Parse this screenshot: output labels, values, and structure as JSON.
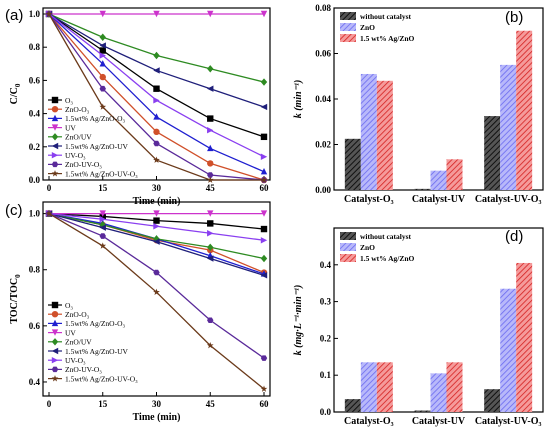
{
  "chart_data": [
    {
      "panel_label": "(a)",
      "type": "line",
      "xlabel": "Time (min)",
      "ylabel_main": "C/C",
      "ylabel_sub": "0",
      "xlim": [
        0,
        60
      ],
      "ylim": [
        0,
        1.0
      ],
      "xticks": [
        0,
        15,
        30,
        45,
        60
      ],
      "yticks": [
        0.0,
        0.2,
        0.4,
        0.6,
        0.8,
        1.0
      ],
      "x": [
        0,
        15,
        30,
        45,
        60
      ],
      "legend_position": "bottom-left",
      "series": [
        {
          "name": "O₃",
          "color": "#000000",
          "marker": "square",
          "values": [
            1.0,
            0.78,
            0.55,
            0.37,
            0.26
          ]
        },
        {
          "name": "ZnO-O₃",
          "color": "#d0502a",
          "marker": "circle",
          "values": [
            1.0,
            0.62,
            0.29,
            0.1,
            0.0
          ]
        },
        {
          "name": "1.5wt% Ag/ZnO-O₃",
          "color": "#1f1fd0",
          "marker": "triangle-up",
          "values": [
            1.0,
            0.7,
            0.38,
            0.19,
            0.05
          ]
        },
        {
          "name": "UV",
          "color": "#cc33cc",
          "marker": "triangle-down",
          "values": [
            1.0,
            1.0,
            1.0,
            1.0,
            1.0
          ]
        },
        {
          "name": "ZnO/UV",
          "color": "#2e8b22",
          "marker": "diamond",
          "values": [
            1.0,
            0.86,
            0.75,
            0.67,
            0.59
          ]
        },
        {
          "name": "1.5wt% Ag/ZnO-UV",
          "color": "#1f1f7a",
          "marker": "triangle-left",
          "values": [
            1.0,
            0.81,
            0.66,
            0.55,
            0.44
          ]
        },
        {
          "name": "UV-O₃",
          "color": "#8a3ff0",
          "marker": "triangle-right",
          "values": [
            1.0,
            0.75,
            0.48,
            0.3,
            0.14
          ]
        },
        {
          "name": "ZnO-UV-O₃",
          "color": "#5a2a9a",
          "marker": "hexagon",
          "values": [
            1.0,
            0.55,
            0.22,
            0.03,
            0.0
          ]
        },
        {
          "name": "1.5wt% Ag/ZnO-UV-O₃",
          "color": "#6b3a1a",
          "marker": "star",
          "values": [
            1.0,
            0.44,
            0.12,
            0.0,
            0.0
          ]
        }
      ]
    },
    {
      "panel_label": "(b)",
      "type": "bar",
      "ylabel": "k (min⁻¹)",
      "ylim": [
        0,
        0.08
      ],
      "yticks": [
        0.0,
        0.02,
        0.04,
        0.06,
        0.08
      ],
      "categories": [
        "Catalyst-O₃",
        "Catalyst-UV",
        "Catalyst-UV-O₃"
      ],
      "legend_position": "top-left",
      "series": [
        {
          "name": "without catalyst",
          "color": "#222222",
          "pattern": "hatch-dark",
          "values": [
            0.0225,
            0.0005,
            0.0325
          ]
        },
        {
          "name": "ZnO",
          "color": "#8a8af5",
          "pattern": "hatch-blue",
          "values": [
            0.051,
            0.0085,
            0.055
          ]
        },
        {
          "name": "1.5 wt% Ag/ZnO",
          "color": "#e04040",
          "pattern": "hatch-red",
          "values": [
            0.048,
            0.0135,
            0.07
          ]
        }
      ]
    },
    {
      "panel_label": "(c)",
      "type": "line",
      "xlabel": "Time (min)",
      "ylabel_main": "TOC/TOC",
      "ylabel_sub": "0",
      "xlim": [
        0,
        60
      ],
      "ylim": [
        0.35,
        1.02
      ],
      "xticks": [
        0,
        15,
        30,
        45,
        60
      ],
      "yticks": [
        0.4,
        0.6,
        0.8,
        1.0
      ],
      "x": [
        0,
        15,
        30,
        45,
        60
      ],
      "legend_position": "bottom-left",
      "series": [
        {
          "name": "O₃",
          "color": "#000000",
          "marker": "square",
          "values": [
            1.0,
            0.99,
            0.975,
            0.965,
            0.945
          ]
        },
        {
          "name": "ZnO-O₃",
          "color": "#d0502a",
          "marker": "circle",
          "values": [
            1.0,
            0.96,
            0.905,
            0.87,
            0.79
          ]
        },
        {
          "name": "1.5wt% Ag/ZnO-O₃",
          "color": "#1f1fd0",
          "marker": "triangle-up",
          "values": [
            1.0,
            0.965,
            0.91,
            0.85,
            0.785
          ]
        },
        {
          "name": "UV",
          "color": "#cc33cc",
          "marker": "triangle-down",
          "values": [
            1.0,
            1.0,
            1.0,
            1.0,
            1.0
          ]
        },
        {
          "name": "ZnO/UV",
          "color": "#2e8b22",
          "marker": "diamond",
          "values": [
            1.0,
            0.96,
            0.91,
            0.88,
            0.84
          ]
        },
        {
          "name": "1.5wt% Ag/ZnO-UV",
          "color": "#1f1f7a",
          "marker": "triangle-left",
          "values": [
            1.0,
            0.95,
            0.9,
            0.84,
            0.78
          ]
        },
        {
          "name": "UV-O₃",
          "color": "#8a3ff0",
          "marker": "triangle-right",
          "values": [
            1.0,
            0.98,
            0.955,
            0.93,
            0.905
          ]
        },
        {
          "name": "ZnO-UV-O₃",
          "color": "#5a2a9a",
          "marker": "hexagon",
          "values": [
            1.0,
            0.92,
            0.79,
            0.62,
            0.485
          ]
        },
        {
          "name": "1.5wt% Ag/ZnO-UV-O₃",
          "color": "#6b3a1a",
          "marker": "star",
          "values": [
            1.0,
            0.885,
            0.72,
            0.53,
            0.375
          ]
        }
      ]
    },
    {
      "panel_label": "(d)",
      "type": "bar",
      "ylabel": "k (mg·L⁻¹·min⁻¹)",
      "ylim": [
        0,
        0.5
      ],
      "yticks": [
        0.0,
        0.1,
        0.2,
        0.3,
        0.4
      ],
      "categories": [
        "Catalyst-O₃",
        "Catalyst-UV",
        "Catalyst-UV-O₃"
      ],
      "legend_position": "top-left",
      "series": [
        {
          "name": "without catalyst",
          "color": "#222222",
          "pattern": "hatch-dark",
          "values": [
            0.035,
            0.004,
            0.062
          ]
        },
        {
          "name": "ZnO",
          "color": "#8a8af5",
          "pattern": "hatch-blue",
          "values": [
            0.135,
            0.105,
            0.335
          ]
        },
        {
          "name": "1.5 wt% Ag/ZnO",
          "color": "#e04040",
          "pattern": "hatch-red",
          "values": [
            0.135,
            0.135,
            0.405
          ]
        }
      ]
    }
  ]
}
